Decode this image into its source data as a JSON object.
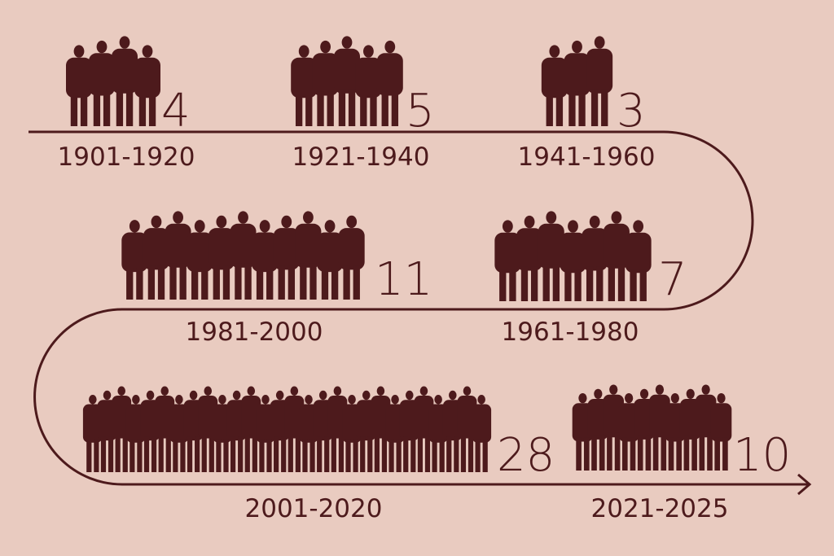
{
  "chart_data": {
    "type": "pictogram-timeline",
    "categories": [
      "1901-1920",
      "1921-1940",
      "1941-1960",
      "1961-1980",
      "1981-2000",
      "2001-2020",
      "2021-2025"
    ],
    "values": [
      4,
      5,
      3,
      7,
      11,
      28,
      10
    ],
    "labels": {
      "count": [
        "4",
        "5",
        "3",
        "7",
        "11",
        "28",
        "10"
      ]
    },
    "colors": {
      "background": "#e9cbc0",
      "foreground": "#4d1a1c"
    },
    "icon": "person-silhouette"
  }
}
